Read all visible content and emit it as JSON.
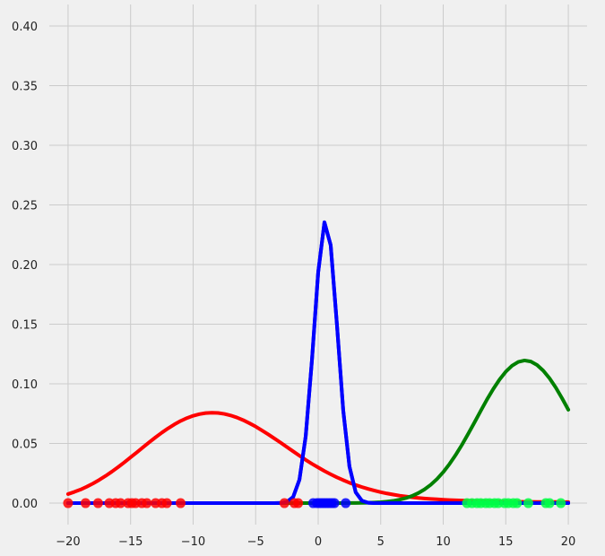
{
  "chart_data": {
    "type": "line",
    "xlim": [
      -21.5,
      21.5
    ],
    "ylim": [
      -0.018,
      0.418
    ],
    "xticks": [
      -20,
      -15,
      -10,
      -5,
      0,
      5,
      10,
      15,
      20
    ],
    "xtick_labels": [
      "−20",
      "−15",
      "−10",
      "−5",
      "0",
      "5",
      "10",
      "15",
      "20"
    ],
    "yticks": [
      0.0,
      0.05,
      0.1,
      0.15,
      0.2,
      0.25,
      0.3,
      0.35,
      0.4
    ],
    "ytick_labels": [
      "0.00",
      "0.05",
      "0.10",
      "0.15",
      "0.20",
      "0.25",
      "0.30",
      "0.35",
      "0.40"
    ],
    "grid": true,
    "x_curve": [
      -20,
      -19.5,
      -19,
      -18.5,
      -18,
      -17.5,
      -17,
      -16.5,
      -16,
      -15.5,
      -15,
      -14.5,
      -14,
      -13.5,
      -13,
      -12.5,
      -12,
      -11.5,
      -11,
      -10.5,
      -10,
      -9.5,
      -9,
      -8.5,
      -8,
      -7.5,
      -7,
      -6.5,
      -6,
      -5.5,
      -5,
      -4.5,
      -4,
      -3.5,
      -3,
      -2.5,
      -2,
      -1.5,
      -1,
      -0.5,
      0,
      0.5,
      1,
      1.5,
      2,
      2.5,
      3,
      3.5,
      4,
      4.5,
      5,
      5.5,
      6,
      6.5,
      7,
      7.5,
      8,
      8.5,
      9,
      9.5,
      10,
      10.5,
      11,
      11.5,
      12,
      12.5,
      13,
      13.5,
      14,
      14.5,
      15,
      15.5,
      16,
      16.5,
      17,
      17.5,
      18,
      18.5,
      19,
      19.5,
      20
    ],
    "series": [
      {
        "color": "#ff0000",
        "curve": [
          0.0076,
          0.0094,
          0.0114,
          0.0138,
          0.0165,
          0.0195,
          0.0228,
          0.0264,
          0.0302,
          0.0342,
          0.0384,
          0.0426,
          0.0469,
          0.0511,
          0.0552,
          0.0591,
          0.0627,
          0.066,
          0.0689,
          0.0713,
          0.0732,
          0.0746,
          0.0755,
          0.0758,
          0.0756,
          0.0748,
          0.0735,
          0.0718,
          0.0696,
          0.067,
          0.0642,
          0.061,
          0.0577,
          0.0542,
          0.0507,
          0.047,
          0.0434,
          0.0398,
          0.0363,
          0.033,
          0.0299,
          0.0269,
          0.0242,
          0.0216,
          0.0193,
          0.0171,
          0.0152,
          0.0135,
          0.0119,
          0.0105,
          0.0092,
          0.0081,
          0.0072,
          0.0063,
          0.0056,
          0.0049,
          0.0044,
          0.0039,
          0.0035,
          0.0032,
          0.0029,
          0.0026,
          0.0024,
          0.0022,
          0.002,
          0.0018,
          0.0017,
          0.0016,
          0.0015,
          0.0014,
          0.0013,
          0.0012,
          0.0012,
          0.0011,
          0.0011,
          0.001,
          0.001,
          0.001,
          0.001,
          0.0009,
          0.0009
        ],
        "points": [
          -20,
          -18.6,
          -17.6,
          -16.7,
          -16.2,
          -15.8,
          -15.2,
          -14.9,
          -14.6,
          -14.1,
          -13.7,
          -13.0,
          -12.5,
          -12.1,
          -11.0,
          -2.7,
          -1.9,
          -1.6
        ]
      },
      {
        "color": "#00ff44",
        "curve_color": "#008000",
        "curve": [
          0,
          0,
          0,
          0,
          0,
          0,
          0,
          0,
          0,
          0,
          0,
          0,
          0,
          0,
          0,
          0,
          0,
          0,
          0,
          0,
          0,
          0,
          0,
          0,
          0,
          0,
          0,
          0,
          0,
          0,
          0,
          0,
          0,
          0,
          0,
          0,
          0,
          0,
          0,
          0,
          0,
          0,
          0,
          0,
          0,
          0.0001,
          0.0001,
          0.0002,
          0.0003,
          0.0005,
          0.0008,
          0.0013,
          0.0019,
          0.0029,
          0.0042,
          0.006,
          0.0084,
          0.0115,
          0.0154,
          0.0202,
          0.026,
          0.0328,
          0.0405,
          0.049,
          0.0582,
          0.0677,
          0.0774,
          0.0869,
          0.0957,
          0.1036,
          0.1102,
          0.1152,
          0.1184,
          0.1196,
          0.1187,
          0.1158,
          0.111,
          0.1046,
          0.0968,
          0.0879,
          0.0783
        ],
        "points": [
          11.9,
          12.3,
          12.7,
          13.0,
          13.4,
          13.7,
          14.1,
          14.4,
          14.9,
          15.2,
          15.6,
          15.9,
          16.8,
          18.2,
          18.5,
          19.4
        ]
      },
      {
        "color": "#0000ff",
        "curve": [
          0,
          0,
          0,
          0,
          0,
          0,
          0,
          0,
          0,
          0,
          0,
          0,
          0,
          0,
          0,
          0,
          0,
          0,
          0,
          0,
          0,
          0,
          0,
          0,
          0,
          0,
          0,
          0,
          0,
          0,
          0,
          0,
          0,
          0,
          0.0001,
          0.001,
          0.0052,
          0.0196,
          0.0559,
          0.1197,
          0.1935,
          0.2354,
          0.2162,
          0.1496,
          0.078,
          0.0307,
          0.0091,
          0.002,
          0.0003,
          0,
          0,
          0,
          0,
          0,
          0,
          0,
          0,
          0,
          0,
          0,
          0,
          0,
          0,
          0,
          0,
          0,
          0,
          0,
          0,
          0,
          0,
          0,
          0,
          0,
          0,
          0,
          0,
          0,
          0,
          0,
          0
        ],
        "points": [
          -0.4,
          -0.1,
          0.1,
          0.3,
          0.5,
          0.7,
          0.9,
          1.1,
          1.3,
          2.2
        ]
      }
    ]
  }
}
